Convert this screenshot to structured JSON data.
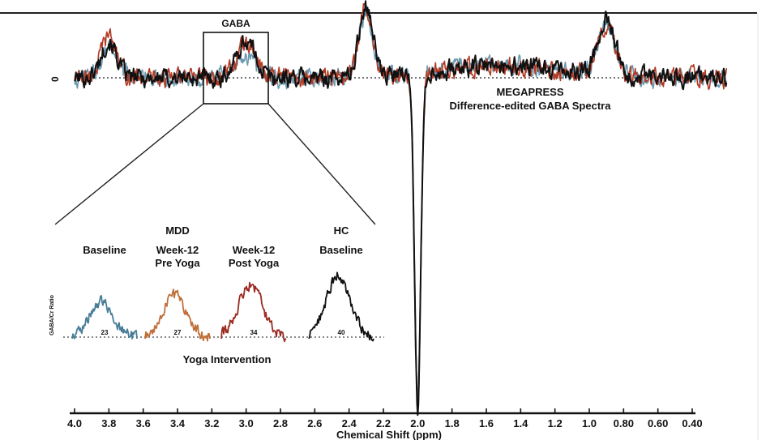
{
  "chart_data": {
    "type": "line",
    "title": "MEGAPRESS",
    "subtitle": "Difference-edited GABA Spectra",
    "xlabel": "Chemical Shift (ppm)",
    "ylabel": "0",
    "x_range": [
      4.0,
      0.2
    ],
    "x_ticks": [
      "4.0",
      "3.8",
      "3.6",
      "3.4",
      "3.2",
      "3.0",
      "2.8",
      "2.6",
      "2.4",
      "2.2",
      "2.0",
      "1.8",
      "1.6",
      "1.4",
      "1.2",
      "1.0",
      "0.80",
      "0.60",
      "0.40"
    ],
    "x_tick_values": [
      4.0,
      3.8,
      3.6,
      3.4,
      3.2,
      3.0,
      2.8,
      2.6,
      2.4,
      2.2,
      2.0,
      1.8,
      1.6,
      1.4,
      1.2,
      1.0,
      0.8,
      0.6,
      0.4
    ],
    "gaba_box_label": "GABA",
    "gaba_box_range": [
      3.2,
      2.8
    ],
    "series": [
      {
        "color": "#111111",
        "peaks": [
          [
            3.8,
            0.55
          ],
          [
            3.0,
            0.55
          ],
          [
            2.3,
            1.1
          ],
          [
            2.0,
            -5.0
          ],
          [
            0.9,
            0.85
          ]
        ]
      },
      {
        "color": "#b23a24",
        "peaks": [
          [
            3.8,
            0.62
          ],
          [
            3.0,
            0.5
          ],
          [
            2.3,
            1.05
          ],
          [
            2.0,
            -5.0
          ],
          [
            0.9,
            0.8
          ]
        ]
      },
      {
        "color": "#6b9ab0",
        "peaks": [
          [
            3.8,
            0.5
          ],
          [
            3.0,
            0.35
          ],
          [
            2.3,
            0.95
          ],
          [
            2.0,
            -4.9
          ],
          [
            0.9,
            0.75
          ]
        ]
      }
    ],
    "inset": {
      "group_labels": [
        "MDD",
        "HC"
      ],
      "conditions": [
        {
          "label": "Baseline",
          "value": "23",
          "color": "#4a7e98"
        },
        {
          "label": "Week-12\nPre Yoga",
          "value": "27",
          "color": "#c0703a"
        },
        {
          "label": "Week-12\nPost Yoga",
          "value": "34",
          "color": "#9c2c22"
        },
        {
          "label": "Baseline",
          "value": "40",
          "color": "#111111"
        }
      ],
      "ylabel": "GABA/Cr Ratio",
      "xlabel": "Yoga Intervention"
    }
  }
}
